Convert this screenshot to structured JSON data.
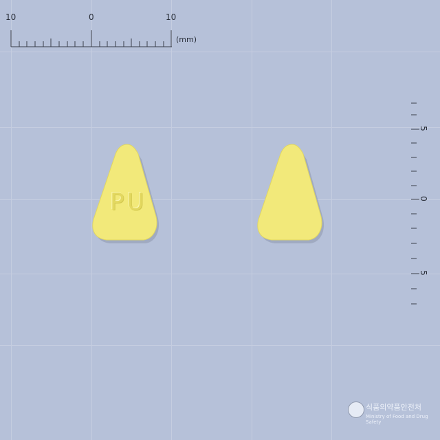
{
  "ruler_top": {
    "labels": [
      "10",
      "0",
      "10"
    ],
    "unit": "(mm)"
  },
  "ruler_right": {
    "labels": [
      "5",
      "0",
      "5"
    ]
  },
  "pills": [
    {
      "imprint": "PU",
      "color": "#f2e97a"
    },
    {
      "imprint": "",
      "color": "#f2e97a"
    }
  ],
  "watermark": {
    "org_korean": "식품의약품안전처",
    "org_english": "Ministry of Food and Drug Safety"
  }
}
